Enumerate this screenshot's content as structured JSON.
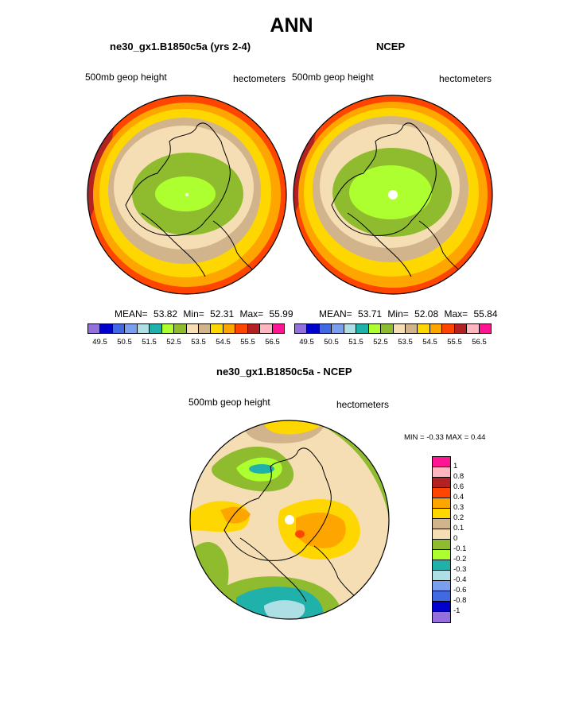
{
  "title": "ANN",
  "panels": [
    {
      "title": "ne30_gx1.B1850c5a (yrs 2-4)",
      "left_label": "500mb geop height",
      "right_label": "hectometers",
      "stats": {
        "mean_label": "MEAN=",
        "mean": "53.82",
        "min_label": "Min=",
        "min": "52.31",
        "max_label": "Max=",
        "max": "55.99"
      }
    },
    {
      "title": "NCEP",
      "left_label": "500mb geop height",
      "right_label": "hectometers",
      "stats": {
        "mean_label": "MEAN=",
        "mean": "53.71",
        "min_label": "Min=",
        "min": "52.08",
        "max_label": "Max=",
        "max": "55.84"
      }
    }
  ],
  "colorbar": {
    "colors": [
      "#9370DB",
      "#0000CD",
      "#4169E1",
      "#7B9FEF",
      "#AEDFE5",
      "#20B2AA",
      "#ADFF2F",
      "#8FBC2F",
      "#F5DEB3",
      "#D2B48C",
      "#FFD700",
      "#FFA500",
      "#FF4500",
      "#B22222",
      "#FFB6C1",
      "#FF1493"
    ],
    "labels": [
      "49.5",
      "50.5",
      "51.5",
      "52.5",
      "53.5",
      "54.5",
      "55.5",
      "56.5"
    ]
  },
  "diff": {
    "title": "ne30_gx1.B1850c5a - NCEP",
    "left_label": "500mb geop height",
    "right_label": "hectometers",
    "minmax": "MIN =  -0.33 MAX =   0.44",
    "colors": [
      "#FF1493",
      "#FFB6C1",
      "#B22222",
      "#FF4500",
      "#FFA500",
      "#FFD700",
      "#D2B48C",
      "#F5DEB3",
      "#8FBC2F",
      "#ADFF2F",
      "#20B2AA",
      "#AEDFE5",
      "#7B9FEF",
      "#4169E1",
      "#0000CD",
      "#9370DB"
    ],
    "labels": [
      "1",
      "0.8",
      "0.6",
      "0.4",
      "0.3",
      "0.2",
      "0.1",
      "0",
      "-0.1",
      "-0.2",
      "-0.3",
      "-0.4",
      "-0.6",
      "-0.8",
      "-1"
    ]
  }
}
